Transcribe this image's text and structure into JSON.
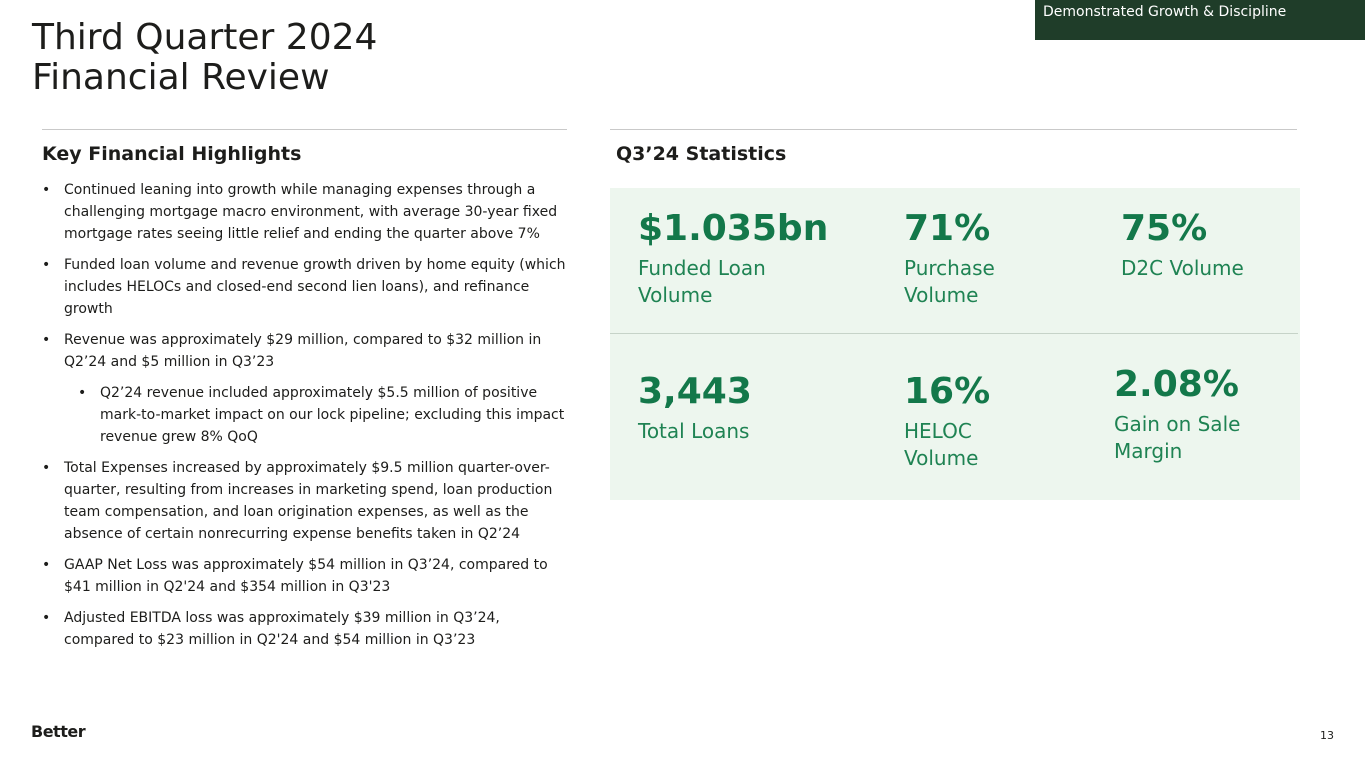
{
  "header": {
    "title_line1": "Third Quarter 2024",
    "title_line2": "Financial Review",
    "banner": "Demonstrated Growth & Discipline"
  },
  "highlights": {
    "heading": "Key Financial Highlights",
    "bullets": [
      {
        "text": "Continued leaning into growth while managing expenses through a challenging mortgage macro environment, with average 30-year fixed mortgage rates seeing little relief and ending the quarter above 7%"
      },
      {
        "text": "Funded loan volume and revenue growth driven by home equity (which includes HELOCs and closed-end second lien loans), and refinance growth"
      },
      {
        "text": "Revenue was approximately $29 million, compared to $32 million in Q2’24 and $5 million in Q3’23",
        "sub": [
          "Q2’24 revenue included approximately $5.5 million of positive mark-to-market impact on our lock pipeline; excluding this impact revenue grew 8% QoQ"
        ]
      },
      {
        "text": "Total Expenses increased by approximately $9.5 million quarter-over-quarter, resulting from increases in marketing spend, loan production team compensation, and loan origination expenses, as well as the absence of certain nonrecurring expense benefits taken in Q2’24"
      },
      {
        "text": "GAAP Net Loss was approximately $54 million in Q3’24, compared to $41 million in Q2'24 and $354 million in Q3'23"
      },
      {
        "text": "Adjusted EBITDA loss was approximately $39 million in Q3’24, compared to $23 million in Q2'24 and $54 million in Q3’23"
      }
    ]
  },
  "statistics": {
    "heading": "Q3’24 Statistics",
    "items": [
      {
        "value": "$1.035bn",
        "label": "Funded Loan Volume"
      },
      {
        "value": "71%",
        "label": "Purchase Volume"
      },
      {
        "value": "75%",
        "label": "D2C Volume"
      },
      {
        "value": "3,443",
        "label": "Total Loans"
      },
      {
        "value": "16%",
        "label": "HELOC Volume"
      },
      {
        "value": "2.08%",
        "label": "Gain on Sale Margin"
      }
    ]
  },
  "footer": {
    "logo": "Better",
    "page_number": "13"
  }
}
